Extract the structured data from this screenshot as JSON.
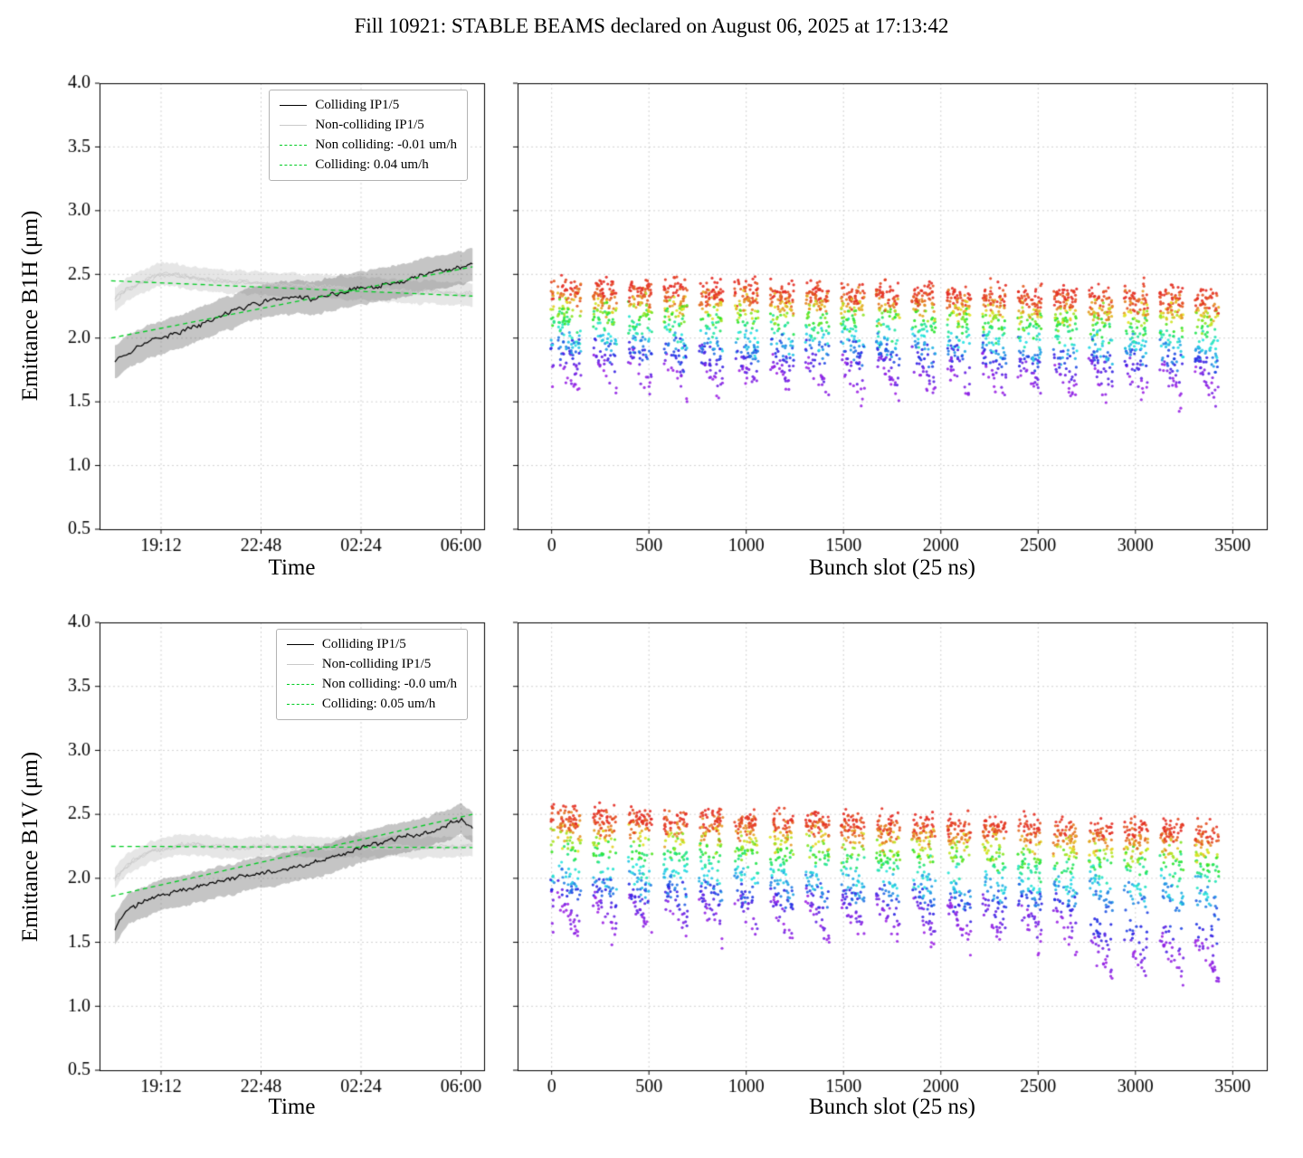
{
  "title": "Fill 10921: STABLE BEAMS declared on August 06, 2025 at 17:13:42",
  "colors": {
    "colliding": "#000000",
    "noncolliding": "#c9c9c9",
    "fit": "#00cc22",
    "band_colliding": "rgba(110,110,110,0.40)",
    "band_noncolliding": "rgba(205,205,205,0.50)",
    "grid": "#c8c8c8",
    "colormap": "rainbow"
  },
  "chart_data": [
    {
      "type": "line",
      "id": "b1h_time",
      "title": "",
      "ylabel": "Emittance B1H (μm)",
      "xlabel": "Time",
      "ylim": [
        0.5,
        4.0
      ],
      "yticks": [
        0.5,
        1.0,
        1.5,
        2.0,
        2.5,
        3.0,
        3.5,
        4.0
      ],
      "xtick_labels": [
        "19:12",
        "22:48",
        "02:24",
        "06:00"
      ],
      "xtick_pos": [
        0.16,
        0.42,
        0.68,
        0.94
      ],
      "legend": [
        "Colliding IP1/5",
        "Non-colliding IP1/5",
        "Non colliding: -0.01 um/h",
        "Colliding: 0.04 um/h"
      ],
      "colliding": {
        "x": [
          0.04,
          0.07,
          0.1,
          0.13,
          0.16,
          0.19,
          0.22,
          0.25,
          0.28,
          0.31,
          0.34,
          0.37,
          0.4,
          0.43,
          0.46,
          0.49,
          0.52,
          0.55,
          0.58,
          0.61,
          0.64,
          0.67,
          0.7,
          0.73,
          0.76,
          0.79,
          0.82,
          0.85,
          0.88,
          0.91,
          0.94,
          0.97
        ],
        "y": [
          1.82,
          1.88,
          1.93,
          1.98,
          2.0,
          2.03,
          2.06,
          2.1,
          2.13,
          2.17,
          2.2,
          2.24,
          2.27,
          2.29,
          2.3,
          2.32,
          2.33,
          2.31,
          2.33,
          2.35,
          2.37,
          2.39,
          2.4,
          2.42,
          2.44,
          2.45,
          2.47,
          2.5,
          2.52,
          2.54,
          2.55,
          2.58
        ],
        "band": 0.13,
        "noise": 0.03
      },
      "noncolliding": {
        "x": [
          0.04,
          0.07,
          0.1,
          0.13,
          0.16,
          0.19,
          0.22,
          0.25,
          0.28,
          0.31,
          0.34,
          0.37,
          0.4,
          0.43,
          0.46,
          0.49,
          0.52,
          0.55,
          0.58,
          0.61,
          0.64,
          0.67,
          0.7,
          0.73,
          0.76,
          0.79,
          0.82,
          0.85,
          0.88,
          0.91,
          0.94,
          0.97
        ],
        "y": [
          2.3,
          2.38,
          2.43,
          2.47,
          2.5,
          2.5,
          2.48,
          2.47,
          2.46,
          2.45,
          2.44,
          2.44,
          2.43,
          2.43,
          2.42,
          2.42,
          2.41,
          2.41,
          2.4,
          2.4,
          2.39,
          2.39,
          2.38,
          2.38,
          2.37,
          2.37,
          2.36,
          2.36,
          2.35,
          2.35,
          2.34,
          2.34
        ],
        "band": 0.09,
        "noise": 0.035
      },
      "fit_noncolliding": {
        "label": "Non colliding: -0.01 um/h",
        "x": [
          0.03,
          0.97
        ],
        "y": [
          2.45,
          2.33
        ]
      },
      "fit_colliding": {
        "label": "Colliding: 0.04 um/h",
        "x": [
          0.03,
          0.97
        ],
        "y": [
          2.0,
          2.56
        ]
      }
    },
    {
      "type": "scatter",
      "id": "b1h_bunch",
      "xlabel": "Bunch slot (25 ns)",
      "xlim": [
        -175,
        3675
      ],
      "xticks": [
        0,
        500,
        1000,
        1500,
        2000,
        2500,
        3000,
        3500
      ],
      "ylim": [
        0.5,
        4.0
      ],
      "yticks": [
        0.5,
        1.0,
        1.5,
        2.0,
        2.5,
        3.0,
        3.5,
        4.0
      ],
      "lead": {
        "start": -5,
        "width": 18,
        "points": 26
      },
      "trains": {
        "count": 19,
        "start": 30,
        "spacing": 182,
        "width": 122,
        "points": 150
      },
      "profile": {
        "y_bottom": 1.86,
        "y_top": 2.4,
        "spread": 0.085,
        "tail_frac": 0.16,
        "tail_slope": 0.3,
        "mid_slope": 0.1,
        "train_drop": 0.08
      },
      "seed": 101
    },
    {
      "type": "line",
      "id": "b1v_time",
      "title": "",
      "ylabel": "Emittance B1V (μm)",
      "xlabel": "Time",
      "ylim": [
        0.5,
        4.0
      ],
      "yticks": [
        0.5,
        1.0,
        1.5,
        2.0,
        2.5,
        3.0,
        3.5,
        4.0
      ],
      "xtick_labels": [
        "19:12",
        "22:48",
        "02:24",
        "06:00"
      ],
      "xtick_pos": [
        0.16,
        0.42,
        0.68,
        0.94
      ],
      "legend": [
        "Colliding IP1/5",
        "Non-colliding IP1/5",
        "Non colliding: -0.0 um/h",
        "Colliding: 0.05 um/h"
      ],
      "colliding": {
        "x": [
          0.04,
          0.07,
          0.1,
          0.13,
          0.16,
          0.19,
          0.22,
          0.25,
          0.28,
          0.31,
          0.34,
          0.37,
          0.4,
          0.43,
          0.46,
          0.49,
          0.52,
          0.55,
          0.58,
          0.61,
          0.64,
          0.67,
          0.7,
          0.73,
          0.76,
          0.79,
          0.82,
          0.85,
          0.88,
          0.91,
          0.94,
          0.97
        ],
        "y": [
          1.6,
          1.74,
          1.8,
          1.84,
          1.87,
          1.89,
          1.91,
          1.93,
          1.95,
          1.97,
          1.99,
          2.01,
          2.03,
          2.05,
          2.06,
          2.08,
          2.1,
          2.12,
          2.14,
          2.17,
          2.2,
          2.23,
          2.26,
          2.28,
          2.3,
          2.32,
          2.34,
          2.36,
          2.39,
          2.42,
          2.46,
          2.4
        ],
        "band": 0.12,
        "noise": 0.028
      },
      "noncolliding": {
        "x": [
          0.04,
          0.07,
          0.1,
          0.13,
          0.16,
          0.19,
          0.22,
          0.25,
          0.28,
          0.31,
          0.34,
          0.37,
          0.4,
          0.43,
          0.46,
          0.49,
          0.52,
          0.55,
          0.58,
          0.61,
          0.64,
          0.67,
          0.7,
          0.73,
          0.76,
          0.79,
          0.82,
          0.85,
          0.88,
          0.91,
          0.94,
          0.97
        ],
        "y": [
          2.0,
          2.1,
          2.16,
          2.2,
          2.23,
          2.25,
          2.26,
          2.26,
          2.25,
          2.25,
          2.24,
          2.24,
          2.25,
          2.25,
          2.24,
          2.24,
          2.25,
          2.25,
          2.24,
          2.24,
          2.25,
          2.25,
          2.24,
          2.24,
          2.25,
          2.25,
          2.24,
          2.24,
          2.25,
          2.25,
          2.24,
          2.25
        ],
        "band": 0.08,
        "noise": 0.03
      },
      "fit_noncolliding": {
        "label": "Non colliding: -0.0 um/h",
        "x": [
          0.03,
          0.97
        ],
        "y": [
          2.25,
          2.24
        ]
      },
      "fit_colliding": {
        "label": "Colliding: 0.05 um/h",
        "x": [
          0.03,
          0.97
        ],
        "y": [
          1.86,
          2.5
        ]
      }
    },
    {
      "type": "scatter",
      "id": "b1v_bunch",
      "xlabel": "Bunch slot (25 ns)",
      "xlim": [
        -175,
        3675
      ],
      "xticks": [
        0,
        500,
        1000,
        1500,
        2000,
        2500,
        3000,
        3500
      ],
      "ylim": [
        0.5,
        4.0
      ],
      "yticks": [
        0.5,
        1.0,
        1.5,
        2.0,
        2.5,
        3.0,
        3.5,
        4.0
      ],
      "lead": {
        "start": -5,
        "width": 18,
        "points": 26
      },
      "trains": {
        "count": 19,
        "start": 30,
        "spacing": 182,
        "width": 122,
        "points": 150
      },
      "profile": {
        "y_bottom": 1.86,
        "y_top": 2.5,
        "spread": 0.085,
        "tail_frac": 0.17,
        "tail_slope": 0.32,
        "mid_slope": 0.12,
        "train_drop": 0.12
      },
      "late": {
        "from_train": 15,
        "extra_drop": 0.22
      },
      "seed": 202
    }
  ]
}
